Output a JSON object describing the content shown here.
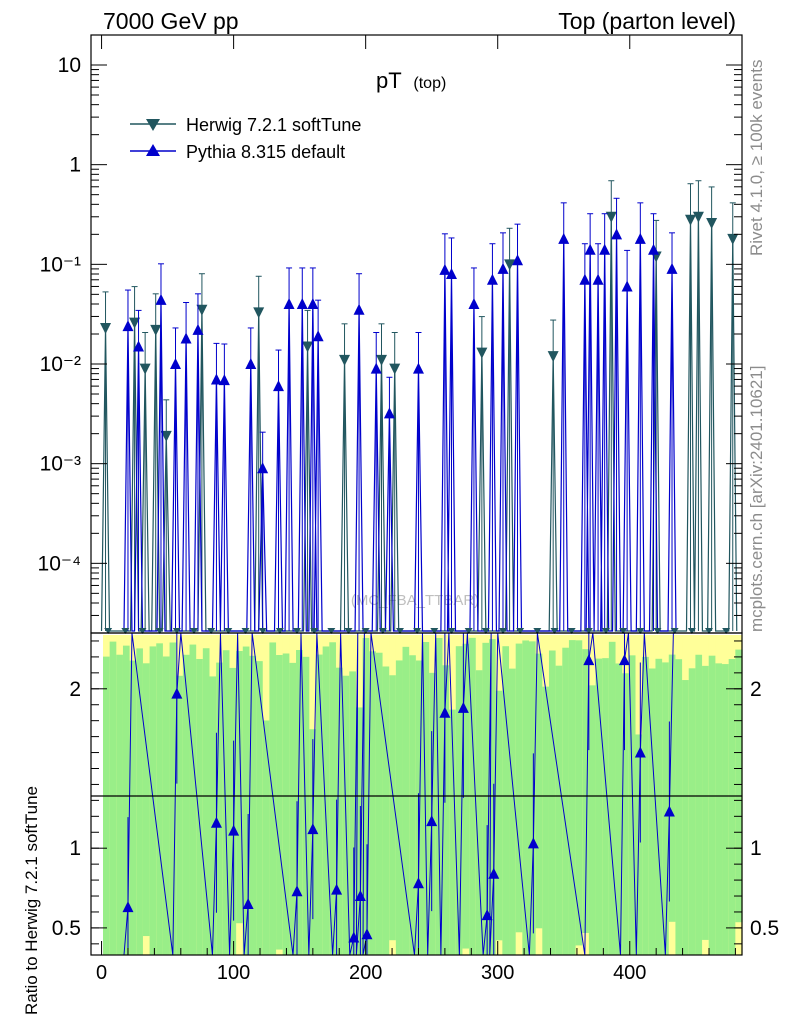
{
  "header": {
    "energy": "7000 GeV pp",
    "process": "Top (parton level)"
  },
  "side": {
    "rivet": "Rivet 4.1.0, ≥ 100k events",
    "site": "mcplots.cern.ch [arXiv:2401.10621]"
  },
  "chart_data": {
    "type": "line",
    "title": "pT",
    "title_sub": "(top)",
    "watermark": "(MC_FBA_TTBAR)",
    "xlabel": "",
    "ylabel_ratio": "Ratio to Herwig 7.2.1 softTune",
    "xlim": [
      -8,
      485
    ],
    "ylim_main_log": [
      2e-05,
      20
    ],
    "ylim_ratio": [
      0.33,
      2.35
    ],
    "x_ticks": [
      "0",
      "100",
      "200",
      "300",
      "400"
    ],
    "y_ticks_main": [
      "10",
      "1",
      "10⁻¹",
      "10⁻²",
      "10⁻³",
      "10⁻⁴"
    ],
    "y_ticks_ratio": [
      "0.5",
      "1",
      "2"
    ],
    "legend_position": "top-left",
    "colors": {
      "herwig": "#21565f",
      "pythia": "#0000cc",
      "band_inner": "#99ee88",
      "band_outer": "#ffff99"
    },
    "series": [
      {
        "name": "Herwig 7.2.1 softTune",
        "marker": "triangle-down",
        "x": [
          3,
          25,
          33,
          41,
          49,
          76,
          119,
          156,
          184,
          212,
          222,
          288,
          309,
          342,
          386,
          420,
          446,
          452,
          462,
          478
        ],
        "y": [
          0.023,
          0.026,
          0.009,
          0.022,
          0.0019,
          0.035,
          0.033,
          0.015,
          0.011,
          0.011,
          0.009,
          0.013,
          0.1,
          0.012,
          0.3,
          0.12,
          0.28,
          0.3,
          0.26,
          0.18
        ]
      },
      {
        "name": "Pythia 8.315 default",
        "marker": "triangle-up",
        "x": [
          20,
          28,
          45,
          56,
          64,
          73,
          87,
          93,
          113,
          122,
          134,
          142,
          152,
          160,
          164,
          195,
          208,
          218,
          240,
          260,
          265,
          282,
          296,
          304,
          315,
          350,
          366,
          370,
          376,
          381,
          390,
          398,
          408,
          418,
          432
        ],
        "y": [
          0.024,
          0.015,
          0.044,
          0.01,
          0.018,
          0.022,
          0.007,
          0.0069,
          0.01,
          0.0009,
          0.006,
          0.04,
          0.04,
          0.04,
          0.019,
          0.035,
          0.009,
          0.0032,
          0.009,
          0.088,
          0.08,
          0.04,
          0.07,
          0.09,
          0.11,
          0.18,
          0.07,
          0.14,
          0.07,
          0.14,
          0.2,
          0.06,
          0.18,
          0.14,
          0.09
        ]
      }
    ],
    "ratio_points": {
      "x": [
        20,
        57,
        87,
        100,
        111,
        148,
        160,
        178,
        191,
        196,
        201,
        240,
        250,
        260,
        274,
        292,
        297,
        327,
        369,
        396,
        408,
        430
      ],
      "y": [
        0.63,
        1.97,
        1.16,
        1.11,
        0.65,
        0.73,
        1.12,
        0.74,
        0.44,
        0.7,
        0.46,
        0.78,
        1.17,
        1.85,
        1.88,
        0.58,
        0.84,
        1.03,
        2.18,
        2.18,
        1.6,
        1.23
      ]
    }
  }
}
